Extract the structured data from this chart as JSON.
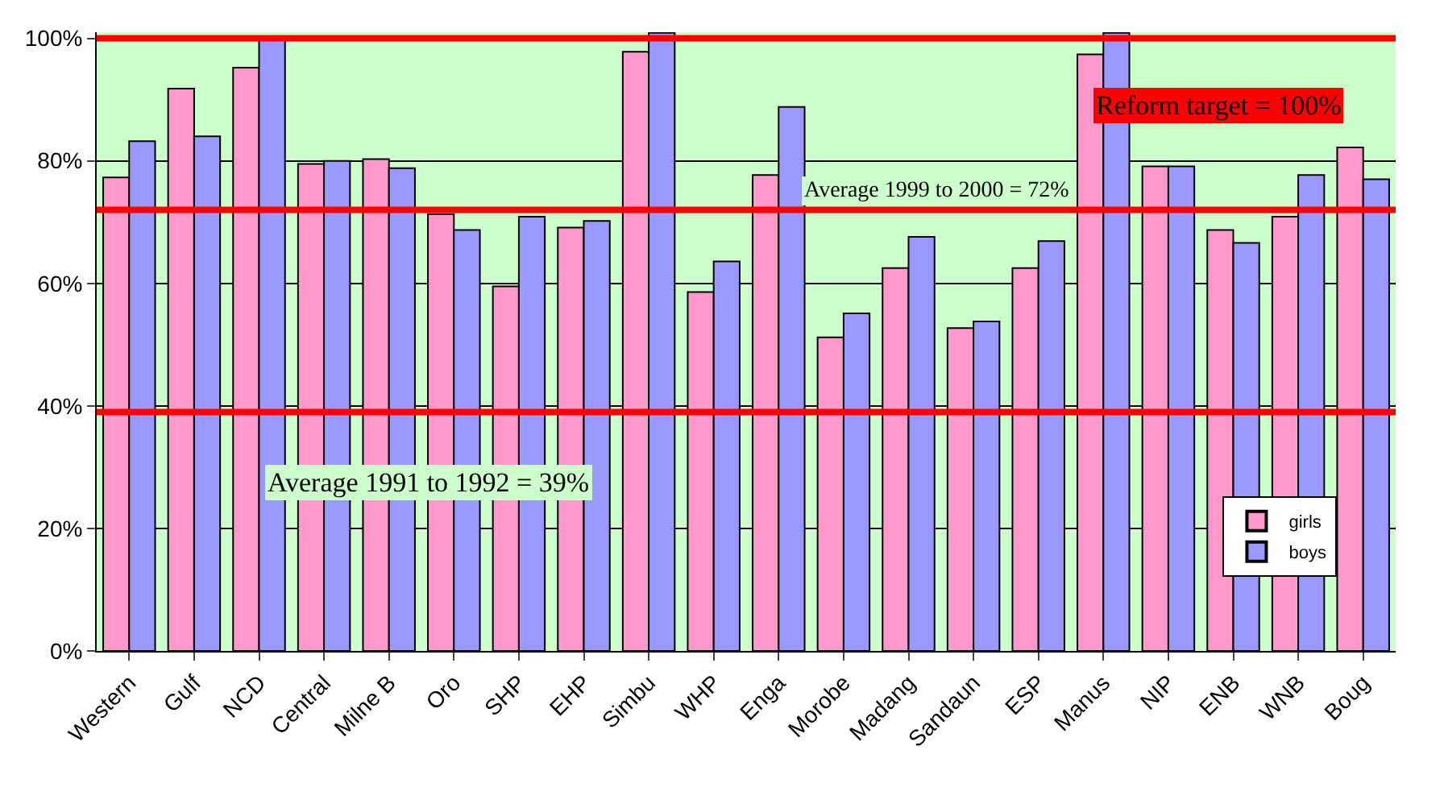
{
  "chart_data": {
    "type": "bar",
    "categories": [
      "Western",
      "Gulf",
      "NCD",
      "Central",
      "Milne B",
      "Oro",
      "SHP",
      "EHP",
      "Simbu",
      "WHP",
      "Enga",
      "Morobe",
      "Madang",
      "Sandaun",
      "ESP",
      "Manus",
      "NIP",
      "ENB",
      "WNB",
      "Boug"
    ],
    "series": [
      {
        "name": "girls",
        "color": "#ff99cc",
        "values": [
          77.3,
          91.8,
          95.2,
          79.5,
          80.3,
          71.3,
          59.5,
          69.1,
          97.8,
          58.6,
          77.7,
          51.2,
          62.5,
          52.7,
          62.5,
          97.4,
          79.1,
          68.7,
          70.9,
          82.2
        ]
      },
      {
        "name": "boys",
        "color": "#9999ff",
        "values": [
          83.2,
          84.0,
          100,
          80.0,
          78.8,
          68.7,
          70.9,
          70.2,
          100.9,
          63.6,
          88.8,
          55.1,
          67.6,
          53.8,
          66.9,
          100.9,
          79.1,
          66.6,
          77.7,
          77.0
        ]
      }
    ],
    "ylim": [
      0,
      101
    ],
    "yticks": [
      {
        "value": 0,
        "label": "0%"
      },
      {
        "value": 20,
        "label": "20%"
      },
      {
        "value": 40,
        "label": "40%"
      },
      {
        "value": 60,
        "label": "60%"
      },
      {
        "value": 80,
        "label": "80%"
      },
      {
        "value": 100,
        "label": "100%"
      }
    ],
    "grid": "y",
    "legend": "bottom right",
    "ref_lines": [
      {
        "axis": "y",
        "value": 100,
        "label": "Reform target = 100%",
        "color": "#ff0000"
      },
      {
        "axis": "y",
        "value": 72,
        "label": "Average 1999 to 2000 = 72%",
        "color": "#ff0000"
      },
      {
        "axis": "y",
        "value": 39,
        "label": "Average 1991 to 1992 = 39%",
        "color": "#ff0000"
      }
    ]
  }
}
